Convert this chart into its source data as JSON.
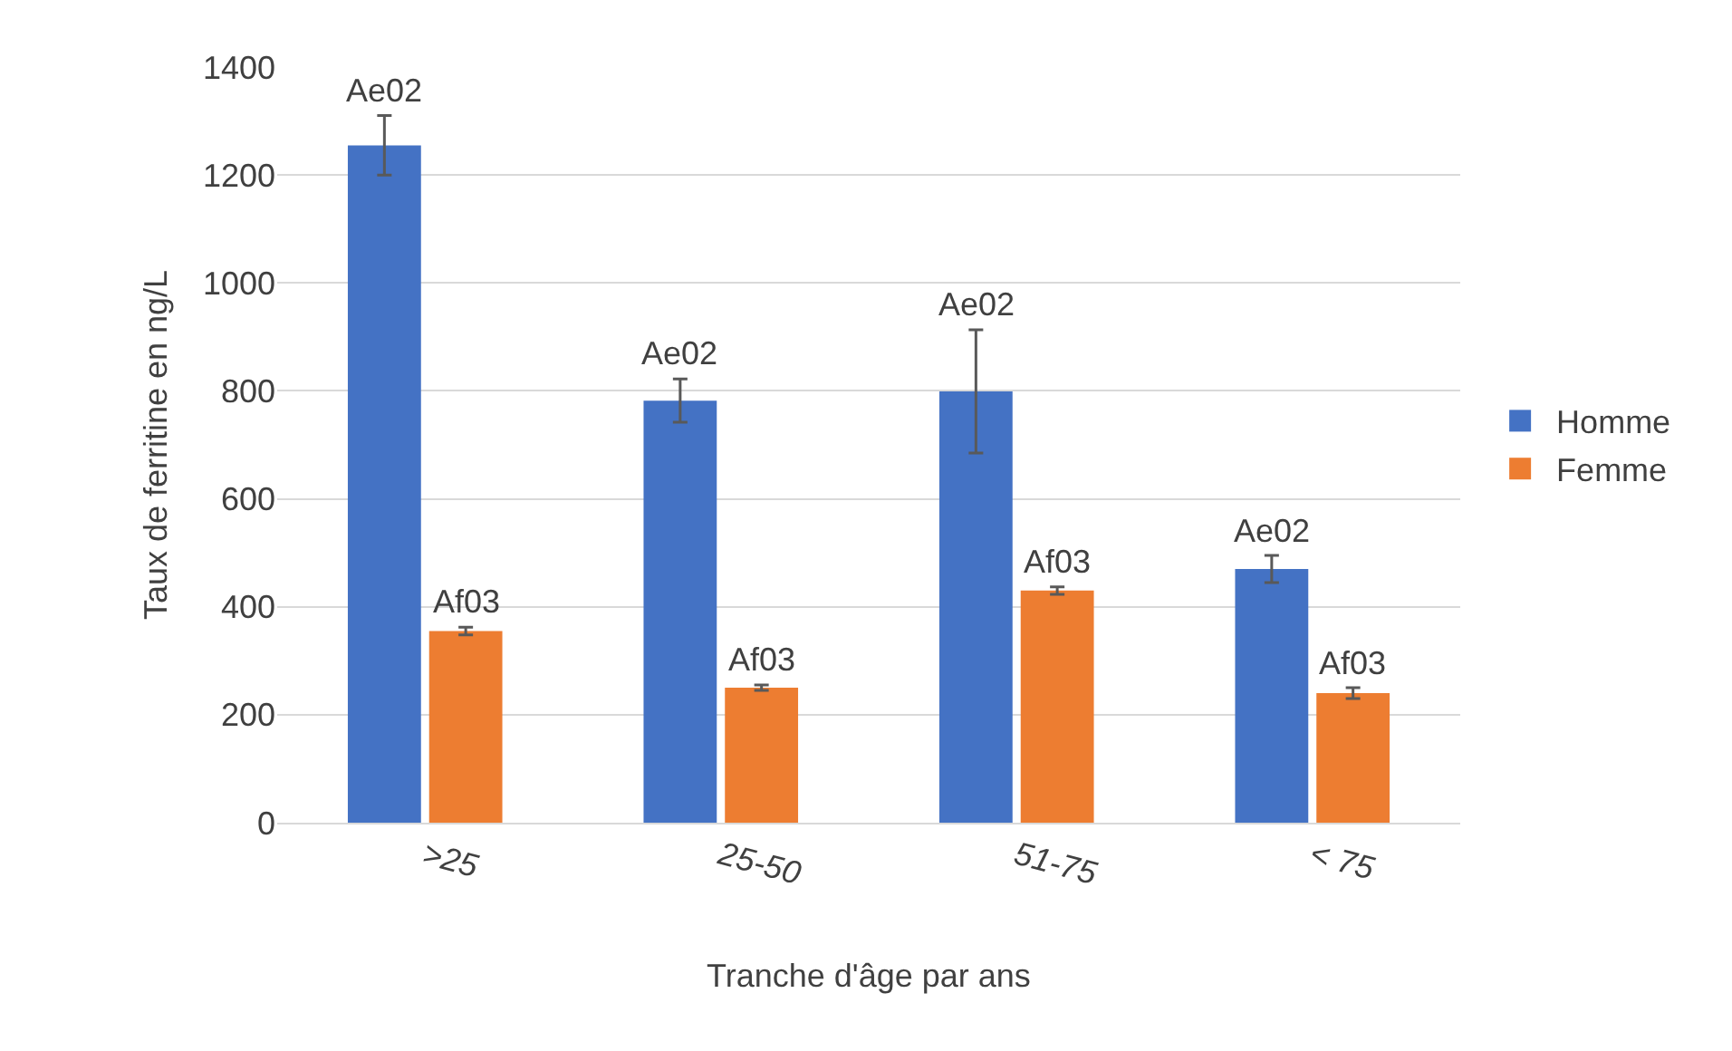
{
  "chart_data": {
    "type": "bar",
    "xlabel": "Tranche d'âge par ans",
    "ylabel": "Taux de ferritine en ng/L",
    "categories": [
      ">25",
      "25-50",
      "51-75",
      "< 75"
    ],
    "series": [
      {
        "name": "Homme",
        "color": "#4472c4",
        "values": [
          1255,
          782,
          799,
          470
        ],
        "errors": [
          55,
          40,
          114,
          25
        ],
        "value_labels": [
          "Ae02",
          "Ae02",
          "Ae02",
          "Ae02"
        ]
      },
      {
        "name": "Femme",
        "color": "#ed7d31",
        "values": [
          355,
          250,
          430,
          240
        ],
        "errors": [
          7,
          5,
          7,
          10
        ],
        "value_labels": [
          "Af03",
          "Af03",
          "Af03",
          "Af03"
        ]
      }
    ],
    "ylim": [
      0,
      1400
    ],
    "yticks": [
      0,
      200,
      400,
      600,
      800,
      1000,
      1200,
      1400
    ],
    "grid": "y",
    "legend": "right"
  }
}
